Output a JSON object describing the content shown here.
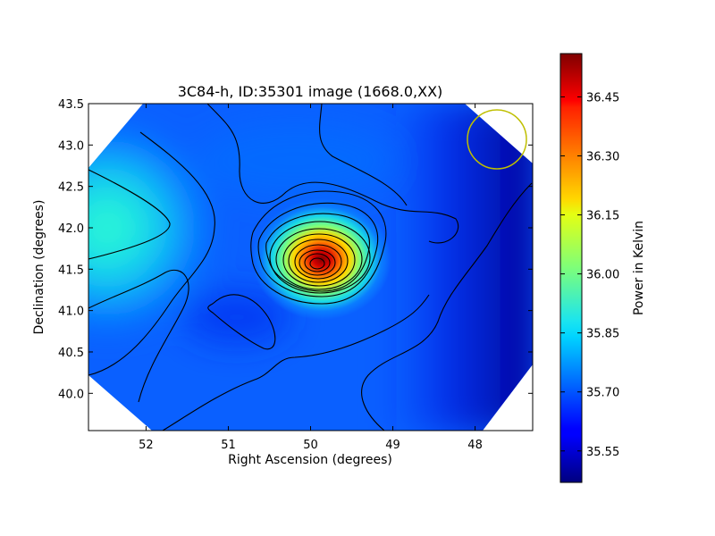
{
  "chart_data": {
    "type": "heatmap",
    "title": "3C84-h, ID:35301 image (1668.0,XX)",
    "xlabel": "Right Ascension (degrees)",
    "ylabel": "Declination (degrees)",
    "xlim": [
      52.7,
      47.3
    ],
    "ylim": [
      39.55,
      43.5
    ],
    "x_ticks": [
      52,
      51,
      50,
      49,
      48
    ],
    "y_ticks": [
      40.0,
      40.5,
      41.0,
      41.5,
      42.0,
      42.5,
      43.0,
      43.5
    ],
    "x_tick_labels": [
      "52",
      "51",
      "50",
      "49",
      "48"
    ],
    "y_tick_labels": [
      "40.0",
      "40.5",
      "41.0",
      "41.5",
      "42.0",
      "42.5",
      "43.0",
      "43.5"
    ],
    "colorbar": {
      "label": "Power in Kelvin",
      "min": 35.47,
      "max": 36.56,
      "ticks": [
        35.55,
        35.7,
        35.85,
        36.0,
        36.15,
        36.3,
        36.45
      ],
      "tick_labels": [
        "35.55",
        "35.70",
        "35.85",
        "36.00",
        "36.15",
        "36.30",
        "36.45"
      ],
      "colormap": "jet"
    },
    "peak": {
      "ra": 49.9,
      "dec": 41.55,
      "value": 36.52
    },
    "beam": {
      "ra": 47.25,
      "dec": 43.07,
      "color": "#bfbf00"
    },
    "grid": false,
    "contours": true
  }
}
